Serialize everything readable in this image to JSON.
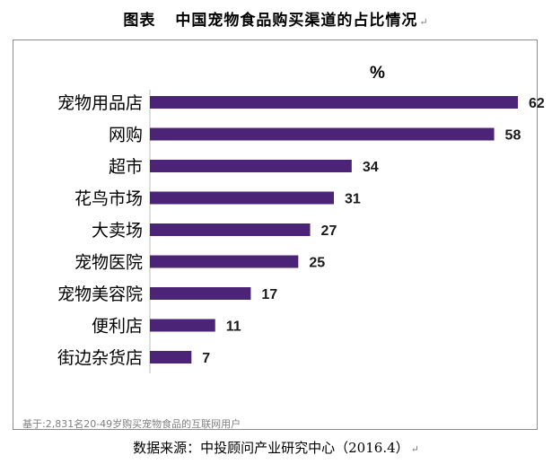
{
  "caption": {
    "label": "图表",
    "title": "中国宠物食品购买渠道的占比情况",
    "mark": "↵"
  },
  "chart_data": {
    "type": "bar",
    "orientation": "horizontal",
    "unit_label": "%",
    "categories": [
      "宠物用品店",
      "网购",
      "超市",
      "花鸟市场",
      "大卖场",
      "宠物医院",
      "宠物美容院",
      "便利店",
      "街边杂货店"
    ],
    "values": [
      62,
      58,
      34,
      31,
      27,
      25,
      17,
      11,
      7
    ],
    "xlim": [
      0,
      62
    ],
    "bar_color": "#4b2377",
    "grid": false,
    "legend": "none"
  },
  "footnote": "基于:2,831名20-49岁购买宠物食品的互联网用户",
  "source": {
    "text": "数据来源：中投顾问产业研究中心（2016.4）",
    "mark": "↵"
  }
}
